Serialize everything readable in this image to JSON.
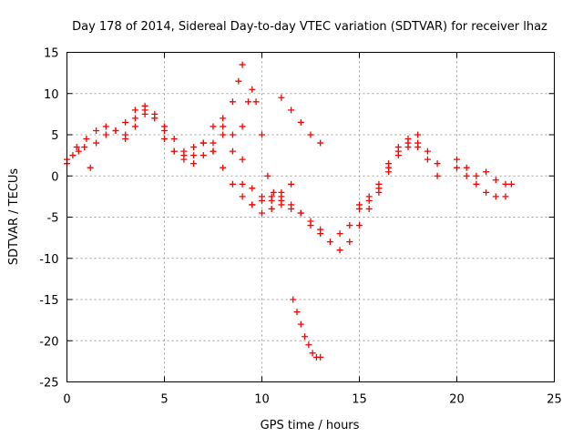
{
  "chart_data": {
    "type": "scatter",
    "title": "Day 178 of 2014, Sidereal Day-to-day VTEC variation (SDTVAR) for receiver lhaz",
    "xlabel": "GPS time / hours",
    "ylabel": "SDTVAR / TECUs",
    "xlim": [
      0,
      25
    ],
    "ylim": [
      -25,
      15
    ],
    "xticks": [
      "0",
      "5",
      "10",
      "15",
      "20",
      "25"
    ],
    "yticks": [
      "15",
      "10",
      "5",
      "0",
      "-5",
      "-10",
      "-15",
      "-20",
      "-25"
    ],
    "grid": true,
    "marker": "+",
    "color": "#ff0000",
    "series": [
      {
        "name": "trace-a",
        "x": [
          0.0,
          0.5,
          1.0,
          1.5,
          2.0,
          2.5,
          3.0,
          3.5,
          4.0,
          4.5,
          5.0,
          5.5,
          6.0,
          6.5,
          7.0,
          7.5,
          8.0,
          8.5,
          9.0,
          9.5,
          10.0,
          10.5,
          11.0,
          11.5,
          12.0,
          12.5,
          13.0
        ],
        "y": [
          2.0,
          3.5,
          4.5,
          5.5,
          6.0,
          5.5,
          6.5,
          8.0,
          8.5,
          7.5,
          5.5,
          3.0,
          2.0,
          1.5,
          2.5,
          4.0,
          5.0,
          3.0,
          -1.0,
          -3.5,
          -4.5,
          -4.0,
          -3.0,
          -3.5,
          -4.5,
          -5.5,
          -7.0
        ]
      },
      {
        "name": "trace-b",
        "x": [
          1.5,
          2.0,
          2.5,
          3.0,
          3.5,
          4.0,
          4.5,
          5.0,
          5.5,
          6.0,
          6.5,
          7.0,
          7.5,
          8.0,
          8.5,
          9.0,
          9.5,
          10.0,
          10.5,
          11.0,
          11.5
        ],
        "y": [
          4.0,
          5.0,
          5.5,
          4.5,
          6.0,
          7.5,
          7.0,
          4.5,
          3.0,
          2.5,
          3.5,
          4.0,
          3.0,
          1.0,
          -1.0,
          -2.5,
          -3.5,
          -3.0,
          -2.5,
          -2.0,
          -1.0
        ]
      },
      {
        "name": "trace-c",
        "x": [
          3.0,
          3.5,
          4.0,
          4.5,
          5.0,
          5.5,
          6.0,
          6.5,
          7.0,
          7.5,
          8.0,
          8.5,
          9.0,
          9.5,
          10.0,
          10.5,
          11.0,
          11.5,
          12.0,
          12.5,
          13.0
        ],
        "y": [
          5.0,
          7.0,
          8.0,
          7.0,
          6.0,
          4.5,
          3.0,
          2.5,
          4.0,
          6.0,
          7.0,
          5.0,
          2.0,
          -1.5,
          -2.5,
          -3.0,
          -3.5,
          -4.0,
          -4.5,
          -6.0,
          -6.5
        ]
      },
      {
        "name": "trace-d",
        "x": [
          7.5,
          8.0,
          8.5,
          8.8,
          9.0
        ],
        "y": [
          3.0,
          6.0,
          9.0,
          11.5,
          13.5
        ]
      },
      {
        "name": "trace-e",
        "x": [
          9.0,
          9.3,
          9.5,
          9.7,
          10.0,
          10.3,
          10.6,
          11.0
        ],
        "y": [
          6.0,
          9.0,
          10.5,
          9.0,
          5.0,
          0.0,
          -2.0,
          -2.5
        ]
      },
      {
        "name": "trace-f",
        "x": [
          11.0,
          11.5,
          12.0,
          12.5,
          13.0
        ],
        "y": [
          9.5,
          8.0,
          6.5,
          5.0,
          4.0
        ]
      },
      {
        "name": "trace-g",
        "x": [
          11.6,
          11.8,
          12.0,
          12.2,
          12.4,
          12.6,
          12.8,
          13.0
        ],
        "y": [
          -15.0,
          -16.5,
          -18.0,
          -19.5,
          -20.5,
          -21.5,
          -22.0,
          -22.0
        ]
      },
      {
        "name": "trace-h",
        "x": [
          13.5,
          14.0,
          14.5,
          15.0,
          15.5,
          16.0,
          16.5,
          17.0,
          17.5,
          18.0,
          18.5,
          19.0
        ],
        "y": [
          -8.0,
          -9.0,
          -8.0,
          -6.0,
          -4.0,
          -2.0,
          1.0,
          3.0,
          4.0,
          3.5,
          2.0,
          0.0
        ]
      },
      {
        "name": "trace-i",
        "x": [
          14.0,
          14.5,
          15.0,
          15.5,
          16.0,
          16.5,
          17.0,
          17.5,
          18.0,
          18.5,
          19.0
        ],
        "y": [
          -7.0,
          -6.0,
          -4.0,
          -3.0,
          -1.5,
          0.5,
          2.5,
          3.5,
          4.0,
          3.0,
          1.5
        ]
      },
      {
        "name": "trace-j",
        "x": [
          15.0,
          15.5,
          16.0,
          16.5,
          17.0,
          17.5,
          18.0
        ],
        "y": [
          -3.5,
          -2.5,
          -1.0,
          1.5,
          3.5,
          4.5,
          5.0
        ]
      },
      {
        "name": "trace-k",
        "x": [
          20.0,
          20.5,
          21.0,
          21.5,
          22.0,
          22.5
        ],
        "y": [
          1.0,
          0.0,
          -1.0,
          -2.0,
          -2.5,
          -2.5
        ]
      },
      {
        "name": "trace-l",
        "x": [
          20.0,
          20.5,
          21.0,
          21.5,
          22.0,
          22.5,
          22.8
        ],
        "y": [
          2.0,
          1.0,
          0.0,
          0.5,
          -0.5,
          -1.0,
          -1.0
        ]
      },
      {
        "name": "trace-m",
        "x": [
          0.0,
          0.3,
          0.6,
          0.9,
          1.2
        ],
        "y": [
          1.5,
          2.5,
          3.0,
          3.5,
          1.0
        ]
      }
    ]
  }
}
